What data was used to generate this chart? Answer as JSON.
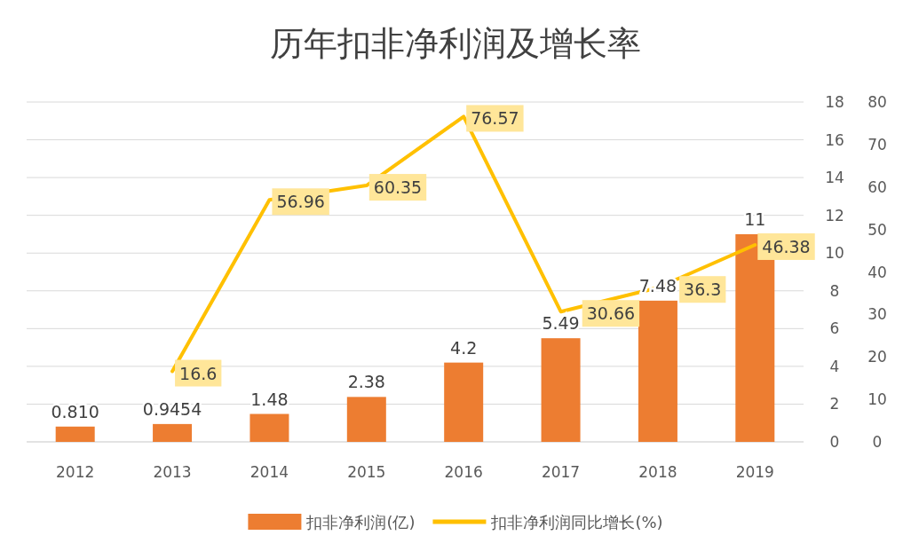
{
  "chart_data": {
    "type": "bar",
    "title": "历年扣非净利润及增长率",
    "categories": [
      "2012",
      "2013",
      "2014",
      "2015",
      "2016",
      "2017",
      "2018",
      "2019"
    ],
    "series": [
      {
        "name": "扣非净利润(亿)",
        "color": "#ed7d31",
        "values": [
          0.81,
          0.9454,
          1.48,
          2.38,
          4.2,
          5.49,
          7.48,
          11
        ],
        "value_labels": [
          "0.810",
          "0.9454",
          "1.48",
          "2.38",
          "4.2",
          "5.49",
          "7.48",
          "11"
        ]
      },
      {
        "name": "扣非净利润同比增长(%)",
        "type": "line",
        "axis": "y2",
        "color": "#ffc000",
        "marker": "none",
        "values": [
          null,
          16.6,
          56.96,
          60.35,
          76.57,
          30.66,
          36.3,
          46.38
        ],
        "value_labels": [
          null,
          "16.6",
          "56.96",
          "60.35",
          "76.57",
          "30.66",
          "36.3",
          "46.38"
        ]
      }
    ],
    "ylim": [
      0,
      18
    ],
    "yticks": [
      0,
      2,
      4,
      6,
      8,
      10,
      12,
      14,
      16,
      18
    ],
    "y2lim": [
      0,
      80
    ],
    "y2ticks": [
      0,
      10,
      20,
      30,
      40,
      50,
      60,
      70,
      80
    ],
    "grid": "y",
    "legend": "bottom"
  }
}
